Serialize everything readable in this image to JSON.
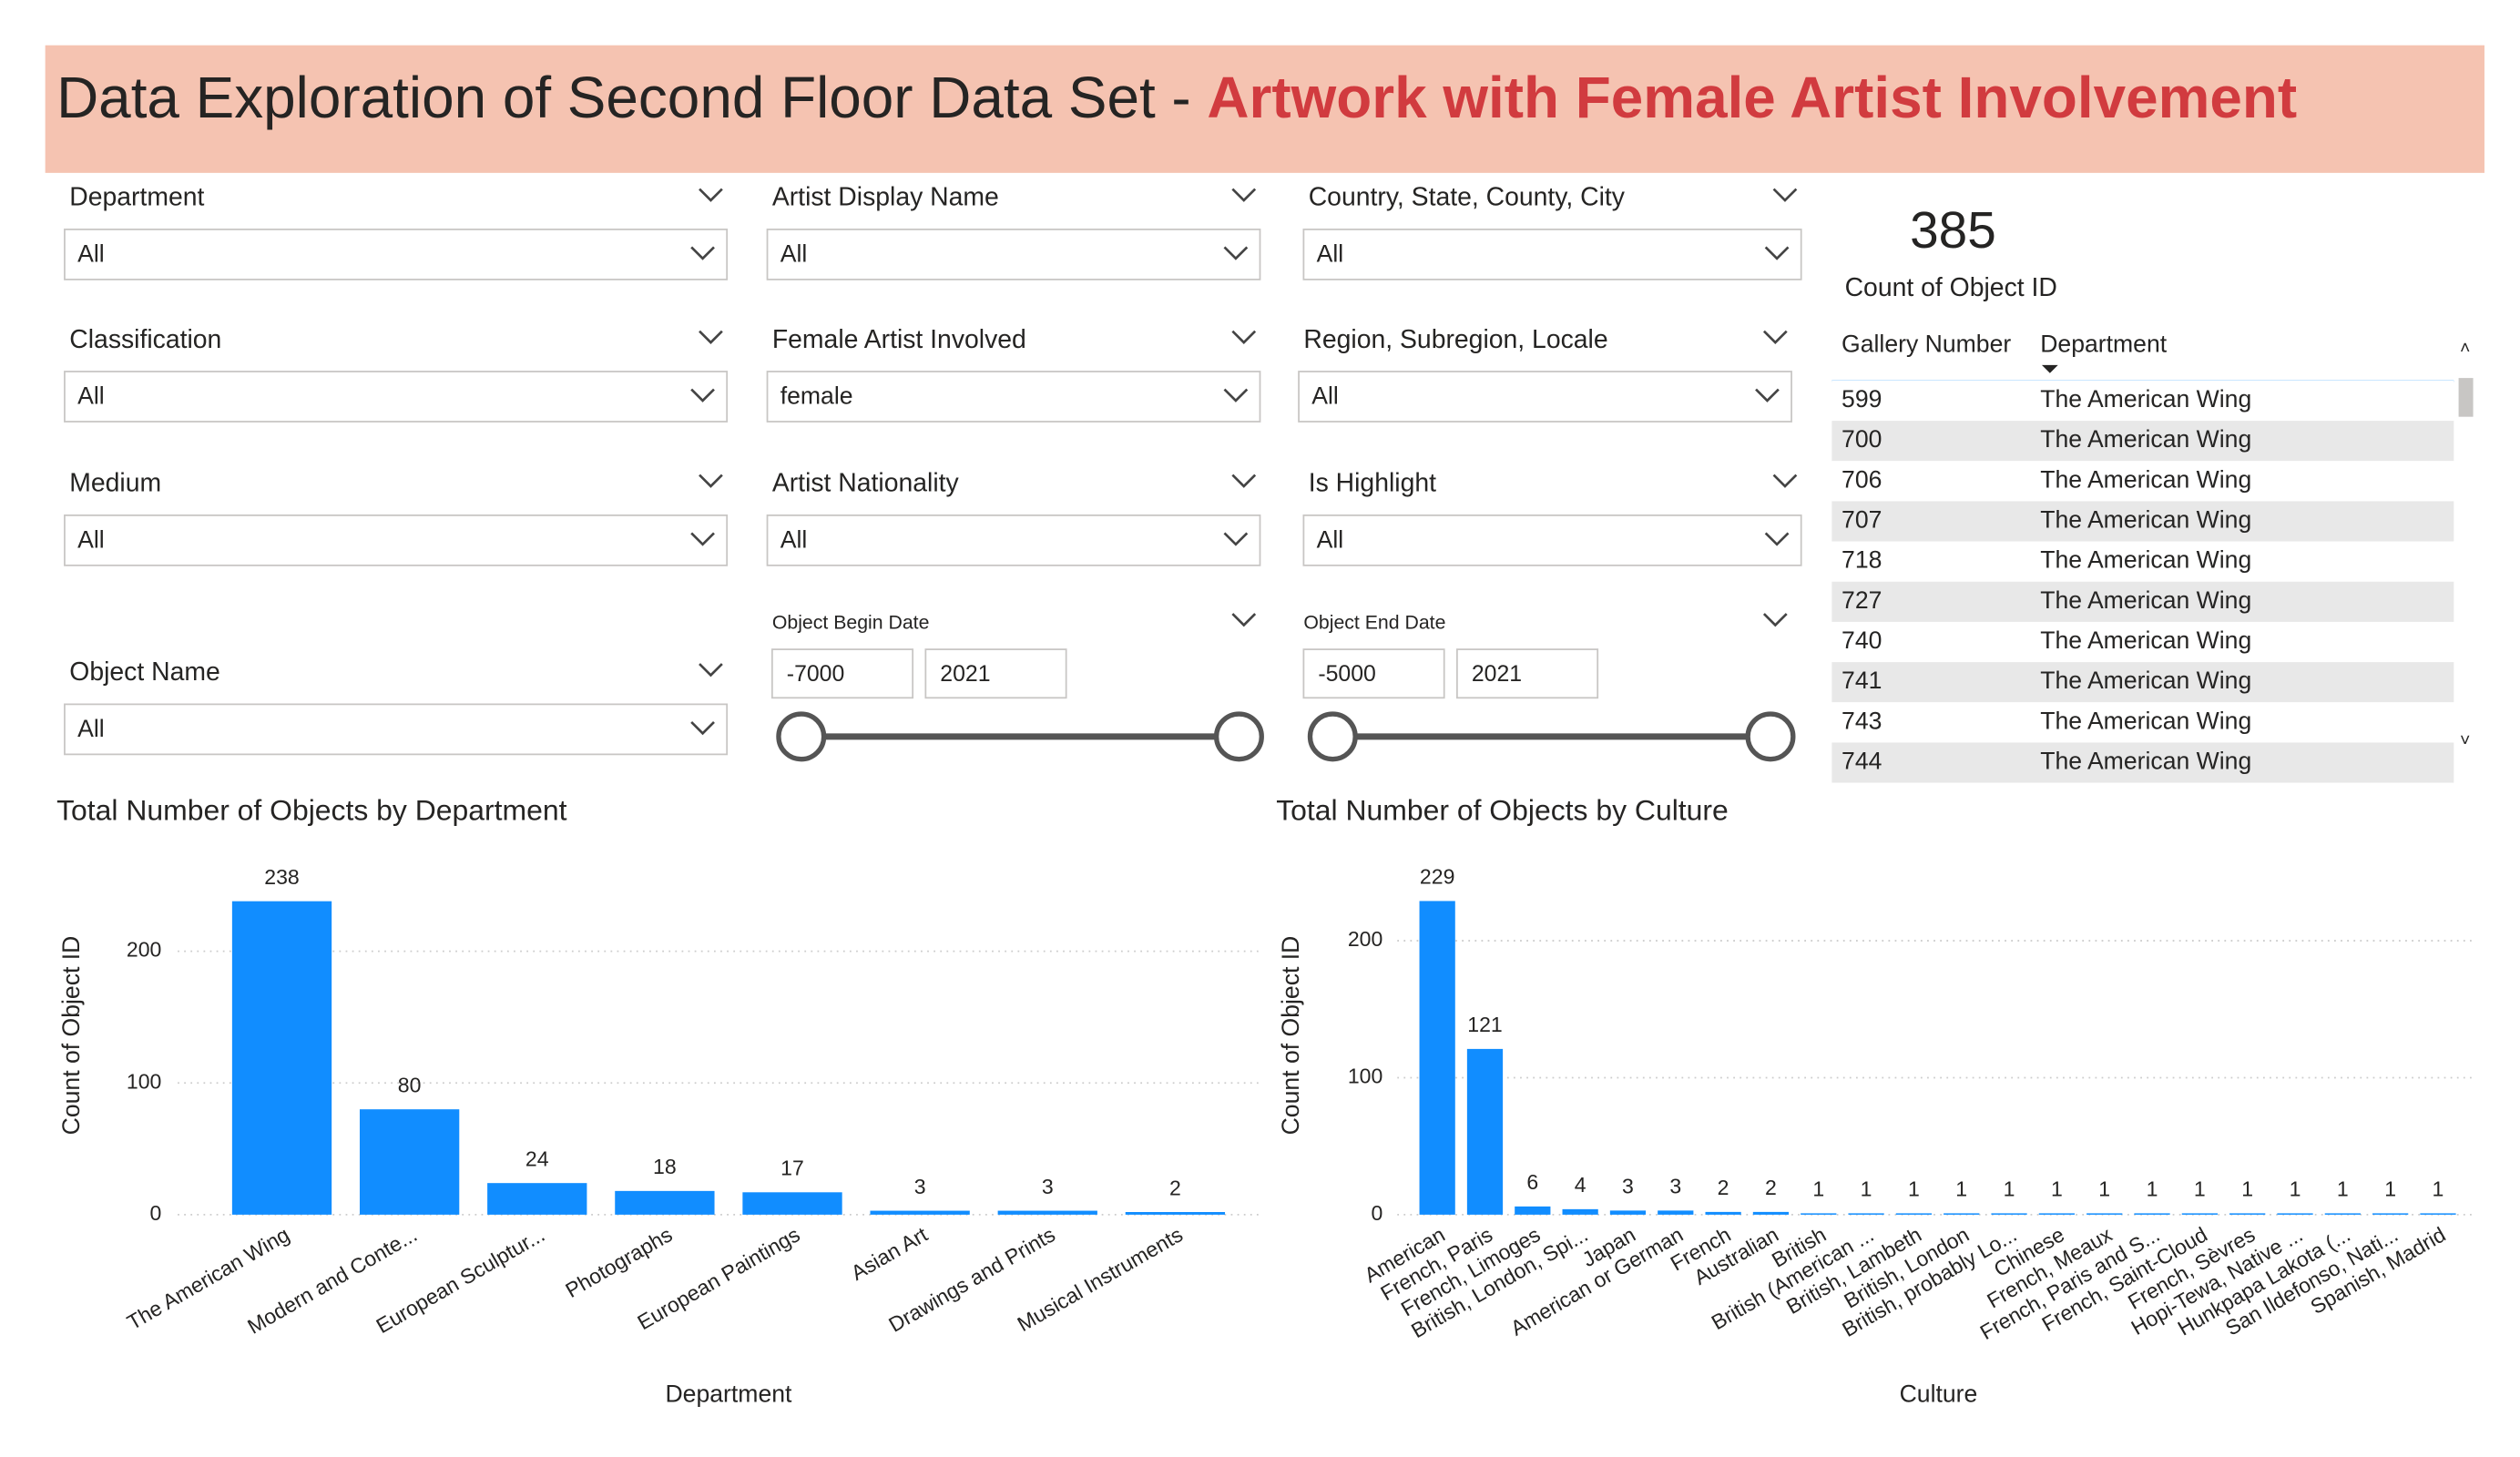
{
  "header": {
    "title": "Data Exploration of Second Floor Data Set -",
    "highlight": "Artwork with Female Artist Involvement"
  },
  "slicers": [
    {
      "label": "Department",
      "value": "All"
    },
    {
      "label": "Classification",
      "value": "All"
    },
    {
      "label": "Medium",
      "value": "All"
    },
    {
      "label": "Object Name",
      "value": "All"
    },
    {
      "label": "Artist Display Name",
      "value": "All"
    },
    {
      "label": "Female Artist Involved",
      "value": "female"
    },
    {
      "label": "Artist Nationality",
      "value": "All"
    },
    {
      "label": "Country, State, County, City",
      "value": "All"
    },
    {
      "label": "Region, Subregion, Locale",
      "value": "All"
    },
    {
      "label": "Is Highlight",
      "value": "All"
    }
  ],
  "range_slicers": [
    {
      "label": "Object Begin Date",
      "from": -7000,
      "to": 2021
    },
    {
      "label": "Object End Date",
      "from": -5000,
      "to": 2021
    }
  ],
  "card": {
    "value": 385,
    "label": "Count of Object ID"
  },
  "table": {
    "columns": [
      "Gallery Number",
      "Department"
    ],
    "rows": [
      [
        599,
        "The American Wing"
      ],
      [
        700,
        "The American Wing"
      ],
      [
        706,
        "The American Wing"
      ],
      [
        707,
        "The American Wing"
      ],
      [
        718,
        "The American Wing"
      ],
      [
        727,
        "The American Wing"
      ],
      [
        740,
        "The American Wing"
      ],
      [
        741,
        "The American Wing"
      ],
      [
        743,
        "The American Wing"
      ],
      [
        744,
        "The American Wing"
      ]
    ]
  },
  "chart_data": [
    {
      "type": "bar",
      "title": "Total Number of Objects by Department",
      "x_label": "Department",
      "y_label": "Count of Object ID",
      "categories": [
        "The American Wing",
        "Modern and Conte...",
        "European Sculptur...",
        "Photographs",
        "European Paintings",
        "Asian Art",
        "Drawings and Prints",
        "Musical Instruments"
      ],
      "values": [
        238,
        80,
        24,
        18,
        17,
        3,
        3,
        2
      ],
      "color": "#118dff",
      "ylim": [
        0,
        260
      ],
      "yticks": [
        0,
        100,
        200
      ],
      "grid": true
    },
    {
      "type": "bar",
      "title": "Total Number of Objects by Culture",
      "x_label": "Culture",
      "y_label": "Count of Object ID",
      "categories": [
        "American",
        "French, Paris",
        "French, Limoges",
        "British, London, Spi...",
        "Japan",
        "American or German",
        "French",
        "Australian",
        "British",
        "British (American ...",
        "British, Lambeth",
        "British, London",
        "British, probably Lo...",
        "Chinese",
        "French, Meaux",
        "French, Paris and S...",
        "French, Saint-Cloud",
        "French, Sèvres",
        "Hopi-Tewa, Native ...",
        "Hunkpapa Lakota (...",
        "San Ildefonso, Nati...",
        "Spanish, Madrid"
      ],
      "values": [
        229,
        121,
        6,
        4,
        3,
        3,
        2,
        2,
        1,
        1,
        1,
        1,
        1,
        1,
        1,
        1,
        1,
        1,
        1,
        1,
        1,
        1
      ],
      "color": "#118dff",
      "ylim": [
        0,
        250
      ],
      "yticks": [
        0,
        100,
        200
      ],
      "grid": true
    }
  ]
}
